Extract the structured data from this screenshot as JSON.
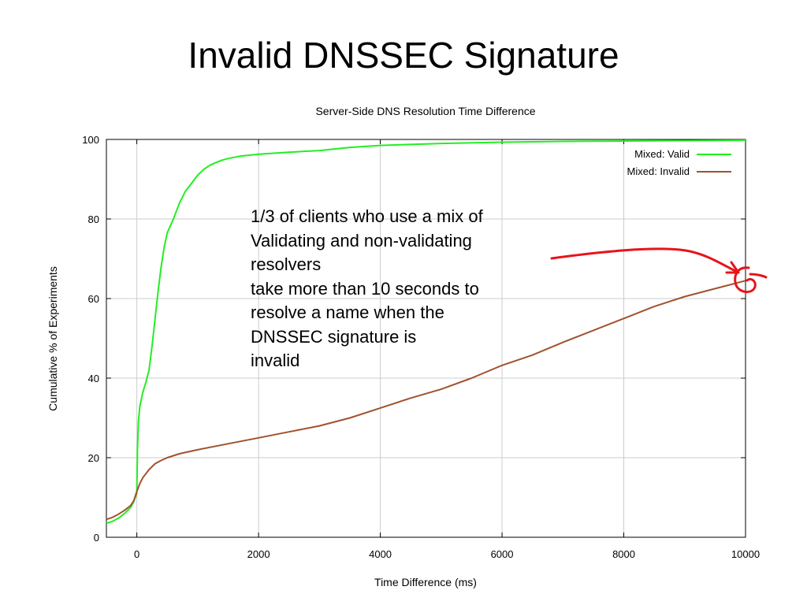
{
  "slide": {
    "title": "Invalid DNSSEC Signature"
  },
  "annotation": {
    "lines": [
      "1/3 of clients who use a mix of",
      "Validating and non-validating",
      "resolvers",
      "take more than 10 seconds to",
      "resolve a name when the",
      "DNSSEC signature is",
      "invalid"
    ],
    "arrow_color": "#e8131b"
  },
  "chart_data": {
    "type": "line",
    "title": "Server-Side DNS Resolution Time Difference",
    "xlabel": "Time Difference (ms)",
    "ylabel": "Cumulative % of Experiments",
    "xlim": [
      -500,
      10000
    ],
    "ylim": [
      0,
      100
    ],
    "x_ticks": [
      0,
      2000,
      4000,
      6000,
      8000,
      10000
    ],
    "y_ticks": [
      0,
      20,
      40,
      60,
      80,
      100
    ],
    "grid": true,
    "legend_position": "top-right",
    "series": [
      {
        "name": "Mixed: Valid",
        "color": "#22ee22",
        "points": [
          [
            -500,
            3.5
          ],
          [
            -400,
            4.0
          ],
          [
            -300,
            4.8
          ],
          [
            -200,
            6.0
          ],
          [
            -100,
            7.5
          ],
          [
            -50,
            9.0
          ],
          [
            0,
            11.0
          ],
          [
            10,
            22.0
          ],
          [
            25,
            29.0
          ],
          [
            50,
            33.0
          ],
          [
            100,
            36.5
          ],
          [
            150,
            39.0
          ],
          [
            200,
            42.0
          ],
          [
            250,
            48.0
          ],
          [
            300,
            55.0
          ],
          [
            350,
            62.0
          ],
          [
            400,
            68.0
          ],
          [
            450,
            73.0
          ],
          [
            500,
            76.5
          ],
          [
            600,
            80.0
          ],
          [
            700,
            84.0
          ],
          [
            800,
            87.0
          ],
          [
            900,
            89.0
          ],
          [
            1000,
            91.0
          ],
          [
            1100,
            92.5
          ],
          [
            1200,
            93.5
          ],
          [
            1300,
            94.2
          ],
          [
            1400,
            94.8
          ],
          [
            1500,
            95.2
          ],
          [
            1700,
            95.8
          ],
          [
            2000,
            96.3
          ],
          [
            2500,
            96.8
          ],
          [
            3000,
            97.2
          ],
          [
            3500,
            98.0
          ],
          [
            4000,
            98.5
          ],
          [
            5000,
            99.0
          ],
          [
            6000,
            99.3
          ],
          [
            7000,
            99.5
          ],
          [
            8000,
            99.6
          ],
          [
            9000,
            99.7
          ],
          [
            10000,
            99.8
          ]
        ]
      },
      {
        "name": "Mixed: Invalid",
        "color": "#a0522d",
        "points": [
          [
            -500,
            4.5
          ],
          [
            -400,
            5.0
          ],
          [
            -300,
            5.8
          ],
          [
            -200,
            6.8
          ],
          [
            -100,
            8.0
          ],
          [
            -50,
            9.2
          ],
          [
            0,
            11.5
          ],
          [
            50,
            13.5
          ],
          [
            100,
            15.0
          ],
          [
            200,
            17.0
          ],
          [
            300,
            18.5
          ],
          [
            400,
            19.3
          ],
          [
            500,
            20.0
          ],
          [
            700,
            21.0
          ],
          [
            1000,
            22.0
          ],
          [
            1500,
            23.5
          ],
          [
            2000,
            25.0
          ],
          [
            2500,
            26.5
          ],
          [
            3000,
            28.0
          ],
          [
            3500,
            30.0
          ],
          [
            4000,
            32.5
          ],
          [
            4500,
            35.0
          ],
          [
            5000,
            37.2
          ],
          [
            5500,
            40.0
          ],
          [
            6000,
            43.2
          ],
          [
            6500,
            45.8
          ],
          [
            7000,
            49.0
          ],
          [
            7500,
            52.0
          ],
          [
            8000,
            55.0
          ],
          [
            8500,
            58.0
          ],
          [
            9000,
            60.5
          ],
          [
            9500,
            62.5
          ],
          [
            10000,
            64.5
          ]
        ]
      }
    ]
  }
}
